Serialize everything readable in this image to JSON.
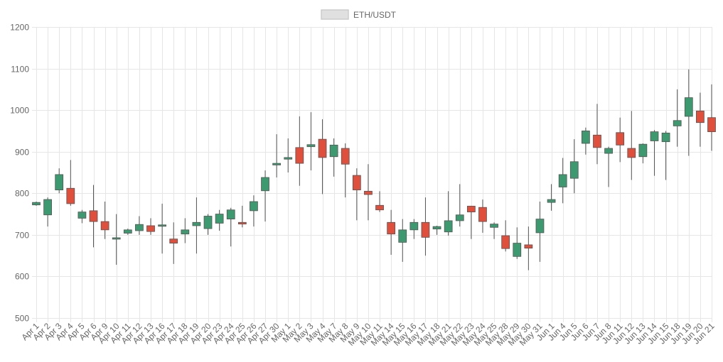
{
  "chart_data": {
    "type": "candlestick",
    "legend": {
      "label": "ETH/USDT",
      "position": "top"
    },
    "ylim": [
      500,
      1200
    ],
    "y_ticks": [
      500,
      600,
      700,
      800,
      900,
      1000,
      1100,
      1200
    ],
    "grid": true,
    "colors": {
      "up": "#3d9970",
      "down": "#e04e3c",
      "wick": "#555555",
      "grid": "#e6e6e6",
      "legend_box": "#e0e0e0"
    },
    "categories": [
      "Apr 1",
      "Apr 2",
      "Apr 3",
      "Apr 4",
      "Apr 5",
      "Apr 6",
      "Apr 9",
      "Apr 10",
      "Apr 11",
      "Apr 12",
      "Apr 13",
      "Apr 16",
      "Apr 17",
      "Apr 18",
      "Apr 19",
      "Apr 20",
      "Apr 23",
      "Apr 24",
      "Apr 25",
      "Apr 26",
      "Apr 27",
      "Apr 30",
      "May 1",
      "May 2",
      "May 3",
      "May 4",
      "May 7",
      "May 8",
      "May 9",
      "May 10",
      "May 11",
      "May 14",
      "May 15",
      "May 16",
      "May 17",
      "May 18",
      "May 21",
      "May 22",
      "May 23",
      "May 24",
      "May 25",
      "May 28",
      "May 29",
      "May 30",
      "May 31",
      "Jun 1",
      "Jun 4",
      "Jun 5",
      "Jun 6",
      "Jun 7",
      "Jun 8",
      "Jun 11",
      "Jun 12",
      "Jun 13",
      "Jun 14",
      "Jun 15",
      "Jun 18",
      "Jun 19",
      "Jun 20",
      "Jun 21"
    ],
    "ohlc": [
      [
        772,
        780,
        770,
        778
      ],
      [
        748,
        790,
        720,
        785
      ],
      [
        808,
        860,
        800,
        845
      ],
      [
        812,
        880,
        770,
        775
      ],
      [
        740,
        760,
        728,
        755
      ],
      [
        758,
        820,
        670,
        732
      ],
      [
        732,
        780,
        690,
        712
      ],
      [
        692,
        750,
        628,
        693
      ],
      [
        704,
        715,
        700,
        712
      ],
      [
        710,
        745,
        700,
        725
      ],
      [
        722,
        740,
        700,
        708
      ],
      [
        723,
        775,
        655,
        724
      ],
      [
        690,
        730,
        630,
        680
      ],
      [
        702,
        740,
        680,
        712
      ],
      [
        722,
        790,
        655,
        730
      ],
      [
        715,
        750,
        700,
        745
      ],
      [
        728,
        760,
        710,
        750
      ],
      [
        738,
        765,
        672,
        760
      ],
      [
        730,
        770,
        718,
        726
      ],
      [
        758,
        795,
        720,
        780
      ],
      [
        806,
        855,
        732,
        838
      ],
      [
        868,
        942,
        838,
        872
      ],
      [
        882,
        932,
        850,
        886
      ],
      [
        910,
        985,
        818,
        872
      ],
      [
        912,
        995,
        855,
        917
      ],
      [
        930,
        978,
        798,
        886
      ],
      [
        888,
        932,
        840,
        916
      ],
      [
        908,
        920,
        790,
        870
      ],
      [
        843,
        860,
        735,
        808
      ],
      [
        805,
        870,
        735,
        797
      ],
      [
        771,
        805,
        755,
        760
      ],
      [
        730,
        760,
        652,
        702
      ],
      [
        682,
        738,
        635,
        712
      ],
      [
        712,
        738,
        690,
        730
      ],
      [
        730,
        790,
        650,
        694
      ],
      [
        714,
        722,
        700,
        720
      ],
      [
        707,
        805,
        698,
        734
      ],
      [
        734,
        822,
        720,
        748
      ],
      [
        769,
        770,
        690,
        755
      ],
      [
        766,
        785,
        705,
        732
      ],
      [
        718,
        730,
        690,
        726
      ],
      [
        698,
        735,
        660,
        667
      ],
      [
        648,
        718,
        642,
        680
      ],
      [
        676,
        720,
        615,
        668
      ],
      [
        705,
        780,
        635,
        738
      ],
      [
        778,
        822,
        758,
        785
      ],
      [
        815,
        885,
        776,
        845
      ],
      [
        836,
        930,
        800,
        876
      ],
      [
        920,
        958,
        893,
        950
      ],
      [
        940,
        1015,
        870,
        910
      ],
      [
        896,
        912,
        815,
        908
      ],
      [
        946,
        982,
        875,
        916
      ],
      [
        908,
        998,
        832,
        886
      ],
      [
        888,
        920,
        872,
        918
      ],
      [
        926,
        952,
        842,
        948
      ],
      [
        924,
        950,
        832,
        945
      ],
      [
        962,
        1050,
        912,
        975
      ],
      [
        985,
        1098,
        890,
        1030
      ],
      [
        998,
        1042,
        912,
        970
      ],
      [
        982,
        1062,
        902,
        948
      ]
    ]
  }
}
